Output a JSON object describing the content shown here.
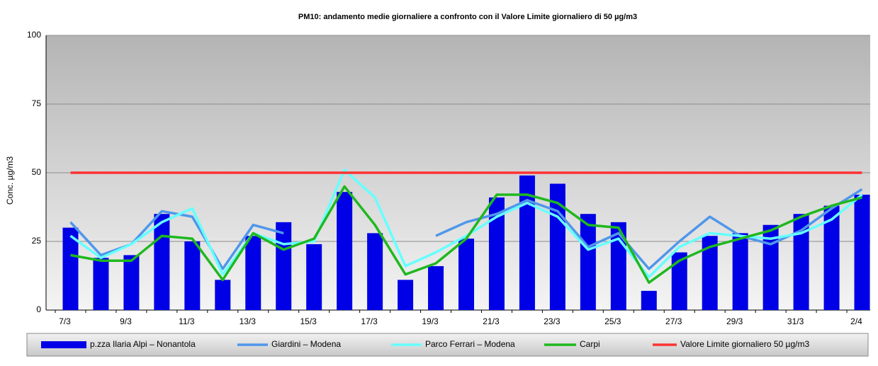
{
  "chart_data": {
    "type": "bar_line",
    "title": "PM10:  andamento  medie giornaliere a confronto con il Valore Limite giornaliero di 50 µg/m3",
    "ylabel": "Conc. µg/m3",
    "categories": [
      "7/3",
      null,
      "9/3",
      null,
      "11/3",
      null,
      "13/3",
      null,
      "15/3",
      null,
      "17/3",
      null,
      "19/3",
      null,
      "21/3",
      null,
      "23/3",
      null,
      "25/3",
      null,
      "27/3",
      null,
      "29/3",
      null,
      "31/3",
      null,
      "2/4"
    ],
    "ylim": [
      0,
      100
    ],
    "yticks": [
      0,
      25,
      50,
      75,
      100
    ],
    "grid": true,
    "series": [
      {
        "name": "p.zza Ilaria Alpi – Nonantola",
        "kind": "bar",
        "color": "#0000e6",
        "values": [
          30,
          19,
          20,
          35,
          25,
          11,
          27,
          32,
          24,
          43,
          28,
          11,
          16,
          26,
          41,
          49,
          46,
          35,
          32,
          7,
          21,
          27,
          28,
          31,
          35,
          38,
          42
        ]
      },
      {
        "name": "Giardini – Modena",
        "kind": "line",
        "color": "#4f97ea",
        "values": [
          32,
          20,
          24,
          36,
          34,
          15,
          31,
          28,
          null,
          null,
          null,
          null,
          27,
          32,
          35,
          40,
          36,
          23,
          28,
          15,
          25,
          34,
          27,
          24,
          29,
          37,
          44
        ]
      },
      {
        "name": "Parco Ferrari – Modena",
        "kind": "line",
        "color": "#66ffff",
        "values": [
          27,
          19,
          24,
          32,
          37,
          13,
          28,
          24,
          25,
          51,
          41,
          16,
          21,
          27,
          34,
          39,
          34,
          22,
          26,
          12,
          23,
          28,
          27,
          26,
          28,
          33,
          42
        ]
      },
      {
        "name": "Carpi",
        "kind": "line",
        "color": "#1fb81f",
        "values": [
          20,
          18,
          18,
          27,
          26,
          11,
          28,
          22,
          26,
          45,
          31,
          13,
          17,
          26,
          42,
          42,
          39,
          31,
          30,
          10,
          18,
          23,
          26,
          29,
          34,
          38,
          41
        ]
      },
      {
        "name": "Valore Limite giornaliero 50 µg/m3",
        "kind": "line",
        "color": "#ff3333",
        "values": [
          50,
          50,
          50,
          50,
          50,
          50,
          50,
          50,
          50,
          50,
          50,
          50,
          50,
          50,
          50,
          50,
          50,
          50,
          50,
          50,
          50,
          50,
          50,
          50,
          50,
          50,
          50
        ]
      }
    ]
  }
}
